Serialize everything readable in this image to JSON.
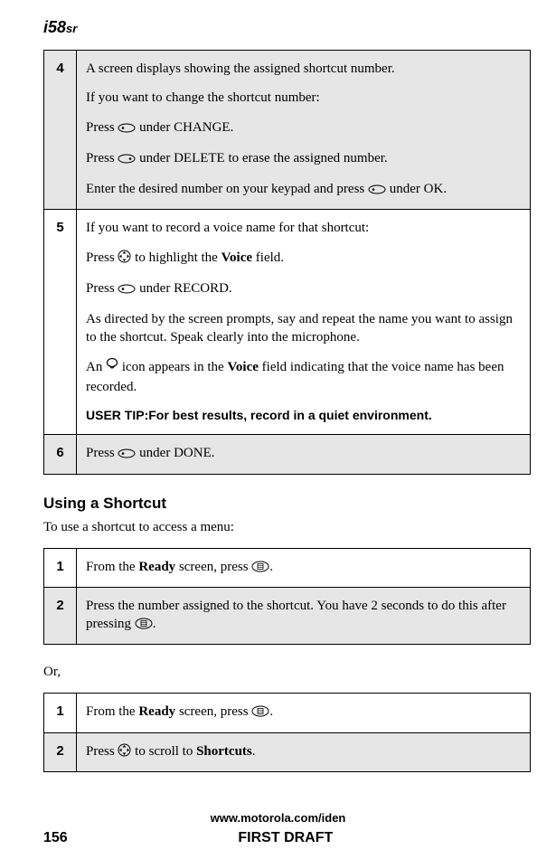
{
  "header": {
    "logo_model": "58",
    "logo_suffix": "sr"
  },
  "table1": {
    "rows": [
      {
        "num": "4",
        "shaded": true,
        "paras": [
          {
            "segments": [
              {
                "t": "A screen displays showing the assigned shortcut number."
              }
            ]
          },
          {
            "segments": [
              {
                "t": "If you want to change the shortcut number:"
              }
            ]
          },
          {
            "segments": [
              {
                "t": "Press "
              },
              {
                "icon": "softkey-left"
              },
              {
                "t": " under CHANGE."
              }
            ]
          },
          {
            "segments": [
              {
                "t": "Press "
              },
              {
                "icon": "softkey-right"
              },
              {
                "t": " under DELETE to erase the assigned number."
              }
            ]
          },
          {
            "segments": [
              {
                "t": "Enter the desired number on your keypad and press "
              },
              {
                "icon": "softkey-left"
              },
              {
                "t": " under OK."
              }
            ]
          }
        ]
      },
      {
        "num": "5",
        "shaded": false,
        "paras": [
          {
            "segments": [
              {
                "t": "If you want to record a voice name for that shortcut:"
              }
            ]
          },
          {
            "segments": [
              {
                "t": "Press "
              },
              {
                "icon": "nav"
              },
              {
                "t": " to highlight the "
              },
              {
                "t": "Voice",
                "bold": true
              },
              {
                "t": " field."
              }
            ]
          },
          {
            "segments": [
              {
                "t": "Press "
              },
              {
                "icon": "softkey-left"
              },
              {
                "t": " under RECORD."
              }
            ]
          },
          {
            "segments": [
              {
                "t": "As directed by the screen prompts, say and repeat the name you want to assign to the shortcut. Speak clearly into the microphone."
              }
            ]
          },
          {
            "segments": [
              {
                "t": "An "
              },
              {
                "icon": "voice"
              },
              {
                "t": " icon appears in the "
              },
              {
                "t": "Voice",
                "bold": true
              },
              {
                "t": " field indicating that the voice name has been recorded."
              }
            ]
          }
        ],
        "tip": {
          "label": "USER TIP:",
          "text": "For best results, record in a quiet environment."
        }
      },
      {
        "num": "6",
        "shaded": true,
        "paras": [
          {
            "segments": [
              {
                "t": "Press "
              },
              {
                "icon": "softkey-left"
              },
              {
                "t": " under DONE."
              }
            ]
          }
        ]
      }
    ]
  },
  "section1": {
    "heading": "Using a Shortcut",
    "intro": "To use a shortcut to access a menu:"
  },
  "table2": {
    "rows": [
      {
        "num": "1",
        "shaded": false,
        "paras": [
          {
            "segments": [
              {
                "t": "From the "
              },
              {
                "t": "Ready",
                "bold": true
              },
              {
                "t": " screen, press "
              },
              {
                "icon": "menu"
              },
              {
                "t": "."
              }
            ]
          }
        ]
      },
      {
        "num": "2",
        "shaded": true,
        "paras": [
          {
            "segments": [
              {
                "t": "Press the number assigned to the shortcut. You have 2 seconds to do this after pressing "
              },
              {
                "icon": "menu"
              },
              {
                "t": "."
              }
            ]
          }
        ]
      }
    ]
  },
  "or_text": "Or,",
  "table3": {
    "rows": [
      {
        "num": "1",
        "shaded": false,
        "paras": [
          {
            "segments": [
              {
                "t": "From the "
              },
              {
                "t": "Ready",
                "bold": true
              },
              {
                "t": " screen, press "
              },
              {
                "icon": "menu"
              },
              {
                "t": "."
              }
            ]
          }
        ]
      },
      {
        "num": "2",
        "shaded": true,
        "paras": [
          {
            "segments": [
              {
                "t": "Press "
              },
              {
                "icon": "nav"
              },
              {
                "t": " to scroll to "
              },
              {
                "t": "Shortcuts",
                "bold": true
              },
              {
                "t": "."
              }
            ]
          }
        ]
      }
    ]
  },
  "footer": {
    "url": "www.motorola.com/iden",
    "page": "156",
    "draft": "FIRST DRAFT"
  },
  "icons": {
    "softkey-left": "<svg width='20' height='11' viewBox='0 0 20 11'><ellipse cx='10' cy='5.5' rx='9' ry='4.5' fill='none' stroke='#000' stroke-width='1'/><circle cx='6' cy='5.5' r='1.3' fill='#000'/></svg>",
    "softkey-right": "<svg width='20' height='11' viewBox='0 0 20 11'><ellipse cx='10' cy='5.5' rx='9' ry='4.5' fill='none' stroke='#000' stroke-width='1'/><circle cx='14' cy='5.5' r='1.3' fill='#000'/></svg>",
    "nav": "<svg width='15' height='15' viewBox='0 0 15 15'><circle cx='7.5' cy='7.5' r='6.5' fill='none' stroke='#000' stroke-width='1'/><path d='M7.5 2 L5.5 4.5 L9.5 4.5 Z M7.5 13 L5.5 10.5 L9.5 10.5 Z M2 7.5 L4.5 5.5 L4.5 9.5 Z M13 7.5 L10.5 5.5 L10.5 9.5 Z' fill='#000'/></svg>",
    "voice": "<svg width='14' height='16' viewBox='0 0 14 16'><ellipse cx='7' cy='5' rx='5.5' ry='4.5' fill='none' stroke='#000' stroke-width='1.2'/><path d='M4 8 Q7 14 10 8' fill='none' stroke='#000' stroke-width='1.2'/></svg>",
    "menu": "<svg width='20' height='13' viewBox='0 0 20 13'><ellipse cx='10' cy='6.5' rx='9' ry='5.5' fill='none' stroke='#000' stroke-width='1'/><rect x='7' y='3.5' width='6' height='6' fill='none' stroke='#000' stroke-width='0.8'/><line x1='7' y1='5.5' x2='13' y2='5.5' stroke='#000' stroke-width='0.6'/><line x1='7' y1='7.5' x2='13' y2='7.5' stroke='#000' stroke-width='0.6'/></svg>"
  },
  "colors": {
    "shaded_bg": "#e6e6e6",
    "border": "#000000",
    "text": "#000000",
    "page_bg": "#ffffff"
  }
}
